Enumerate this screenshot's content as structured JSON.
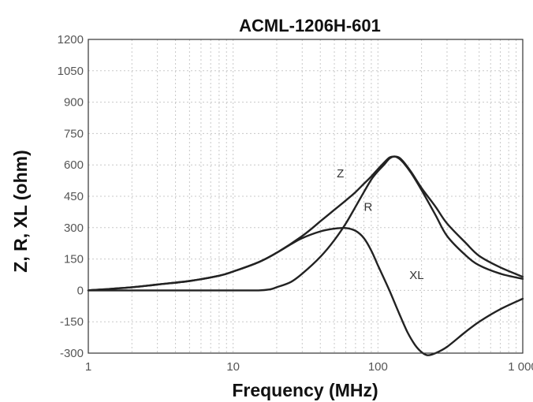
{
  "chart_data": {
    "type": "line",
    "title": "ACML-1206H-601",
    "xlabel": "Frequency (MHz)",
    "ylabel": "Z, R, XL (ohm)",
    "x_scale": "log",
    "xlim": [
      1,
      1000
    ],
    "ylim": [
      -300,
      1200
    ],
    "x_ticks": [
      {
        "value": 1,
        "label": "1"
      },
      {
        "value": 10,
        "label": "10"
      },
      {
        "value": 100,
        "label": "100"
      },
      {
        "value": 1000,
        "label": "1 000"
      }
    ],
    "y_ticks": [
      {
        "value": 1200,
        "label": "1200"
      },
      {
        "value": 1050,
        "label": "1050"
      },
      {
        "value": 900,
        "label": "900"
      },
      {
        "value": 750,
        "label": "750"
      },
      {
        "value": 600,
        "label": "600"
      },
      {
        "value": 450,
        "label": "450"
      },
      {
        "value": 300,
        "label": "300"
      },
      {
        "value": 150,
        "label": "150"
      },
      {
        "value": 0,
        "label": "0"
      },
      {
        "value": -150,
        "label": "-150"
      },
      {
        "value": -300,
        "label": "-300"
      }
    ],
    "grid": true,
    "series": [
      {
        "name": "Z",
        "points": [
          [
            1,
            0
          ],
          [
            2,
            15
          ],
          [
            3,
            28
          ],
          [
            5,
            45
          ],
          [
            8,
            70
          ],
          [
            10,
            90
          ],
          [
            15,
            135
          ],
          [
            20,
            180
          ],
          [
            30,
            260
          ],
          [
            40,
            330
          ],
          [
            50,
            385
          ],
          [
            60,
            430
          ],
          [
            70,
            470
          ],
          [
            80,
            510
          ],
          [
            90,
            545
          ],
          [
            100,
            580
          ],
          [
            110,
            610
          ],
          [
            120,
            635
          ],
          [
            130,
            640
          ],
          [
            140,
            635
          ],
          [
            150,
            615
          ],
          [
            170,
            565
          ],
          [
            200,
            490
          ],
          [
            250,
            400
          ],
          [
            300,
            320
          ],
          [
            400,
            230
          ],
          [
            500,
            165
          ],
          [
            700,
            110
          ],
          [
            1000,
            65
          ]
        ]
      },
      {
        "name": "R",
        "points": [
          [
            1,
            0
          ],
          [
            10,
            0
          ],
          [
            15,
            0
          ],
          [
            18,
            5
          ],
          [
            20,
            15
          ],
          [
            25,
            40
          ],
          [
            30,
            80
          ],
          [
            40,
            160
          ],
          [
            50,
            240
          ],
          [
            60,
            320
          ],
          [
            70,
            400
          ],
          [
            80,
            470
          ],
          [
            90,
            530
          ],
          [
            100,
            570
          ],
          [
            110,
            600
          ],
          [
            120,
            630
          ],
          [
            130,
            640
          ],
          [
            140,
            630
          ],
          [
            150,
            610
          ],
          [
            170,
            560
          ],
          [
            200,
            480
          ],
          [
            250,
            360
          ],
          [
            300,
            260
          ],
          [
            400,
            170
          ],
          [
            500,
            120
          ],
          [
            700,
            80
          ],
          [
            1000,
            55
          ]
        ]
      },
      {
        "name": "XL",
        "points": [
          [
            1,
            0
          ],
          [
            2,
            15
          ],
          [
            3,
            28
          ],
          [
            5,
            45
          ],
          [
            8,
            70
          ],
          [
            10,
            90
          ],
          [
            15,
            135
          ],
          [
            20,
            180
          ],
          [
            25,
            220
          ],
          [
            30,
            250
          ],
          [
            40,
            282
          ],
          [
            50,
            295
          ],
          [
            60,
            298
          ],
          [
            70,
            285
          ],
          [
            80,
            250
          ],
          [
            90,
            190
          ],
          [
            100,
            120
          ],
          [
            120,
            0
          ],
          [
            140,
            -110
          ],
          [
            160,
            -200
          ],
          [
            180,
            -260
          ],
          [
            200,
            -295
          ],
          [
            220,
            -310
          ],
          [
            250,
            -300
          ],
          [
            300,
            -270
          ],
          [
            400,
            -200
          ],
          [
            500,
            -150
          ],
          [
            700,
            -90
          ],
          [
            1000,
            -40
          ]
        ]
      }
    ],
    "annotations": [
      {
        "text": "Z",
        "x": 52,
        "y": 540
      },
      {
        "text": "R",
        "x": 80,
        "y": 380
      },
      {
        "text": "XL",
        "x": 165,
        "y": 55
      }
    ]
  }
}
